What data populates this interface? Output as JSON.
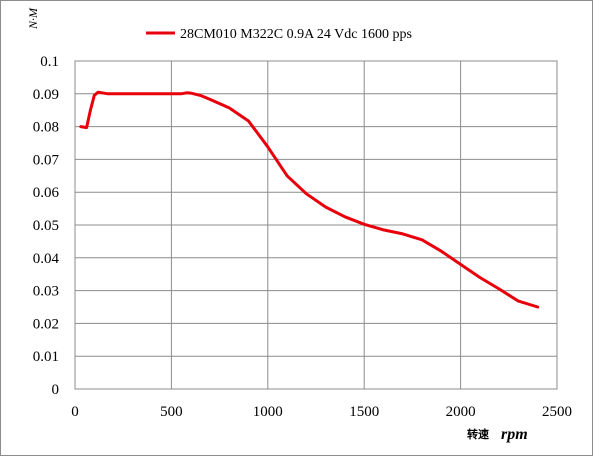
{
  "chart_data": {
    "type": "line",
    "ylabel": "N·M",
    "xlabel": "转速",
    "xlabel_unit": "rpm",
    "xlim": [
      0,
      2500
    ],
    "ylim": [
      0,
      0.1
    ],
    "x_ticks": [
      "0",
      "500",
      "1000",
      "1500",
      "2000",
      "2500"
    ],
    "y_ticks": [
      "0",
      "0.01",
      "0.02",
      "0.03",
      "0.04",
      "0.05",
      "0.06",
      "0.07",
      "0.08",
      "0.09",
      "0.1"
    ],
    "grid": true,
    "legend_position": "top",
    "series": [
      {
        "name": "28CM010 M322C 0.9A 24 Vdc  1600 pps",
        "color": "#e8000b",
        "x": [
          30,
          60,
          80,
          100,
          120,
          140,
          170,
          200,
          300,
          400,
          500,
          550,
          580,
          600,
          650,
          700,
          800,
          900,
          1000,
          1100,
          1200,
          1300,
          1400,
          1500,
          1600,
          1700,
          1800,
          1900,
          2000,
          2100,
          2200,
          2300,
          2400
        ],
        "y": [
          0.08,
          0.0797,
          0.085,
          0.0895,
          0.0905,
          0.0903,
          0.09,
          0.09,
          0.09,
          0.09,
          0.09,
          0.09,
          0.0903,
          0.0902,
          0.0895,
          0.0883,
          0.0857,
          0.0817,
          0.0738,
          0.065,
          0.0595,
          0.0555,
          0.0525,
          0.0502,
          0.0485,
          0.0473,
          0.0455,
          0.042,
          0.038,
          0.034,
          0.0305,
          0.0268,
          0.025
        ]
      }
    ]
  }
}
